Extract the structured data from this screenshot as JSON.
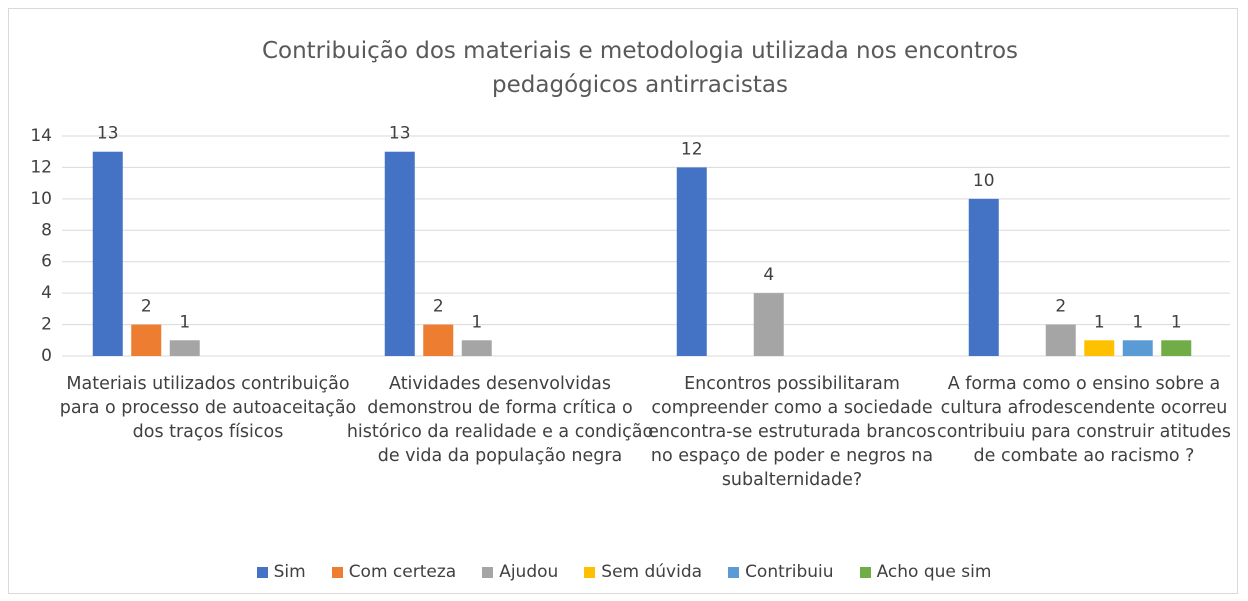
{
  "chart_data": {
    "type": "bar",
    "title": "Contribuição dos materiais e metodologia utilizada nos encontros pedagógicos antirracistas",
    "categories": [
      "Materiais utilizados contribuição para o processo de autoaceitação dos traços físicos",
      "Atividades desenvolvidas demonstrou de forma crítica o histórico da realidade e a condição de vida da população negra",
      "Encontros possibilitaram compreender como a sociedade encontra-se estruturada brancos no espaço de poder e negros na subalternidade?",
      "A forma como o ensino sobre a cultura afrodescendente ocorreu contribuiu para construir atitudes de combate ao racismo ?"
    ],
    "series": [
      {
        "name": "Sim",
        "color": "#4472c4",
        "values": [
          13,
          13,
          12,
          10
        ]
      },
      {
        "name": "Com certeza",
        "color": "#ed7d31",
        "values": [
          2,
          2,
          null,
          null
        ]
      },
      {
        "name": "Ajudou",
        "color": "#a5a5a5",
        "values": [
          1,
          1,
          4,
          2
        ]
      },
      {
        "name": "Sem dúvida",
        "color": "#ffc000",
        "values": [
          null,
          null,
          null,
          1
        ]
      },
      {
        "name": "Contribuiu",
        "color": "#5b9bd5",
        "values": [
          null,
          null,
          null,
          1
        ]
      },
      {
        "name": "Acho que sim",
        "color": "#70ad47",
        "values": [
          null,
          null,
          null,
          1
        ]
      }
    ],
    "ylim": [
      0,
      14
    ],
    "yticks": [
      0,
      2,
      4,
      6,
      8,
      10,
      12,
      14
    ],
    "grid": true,
    "legend": "bottom"
  }
}
